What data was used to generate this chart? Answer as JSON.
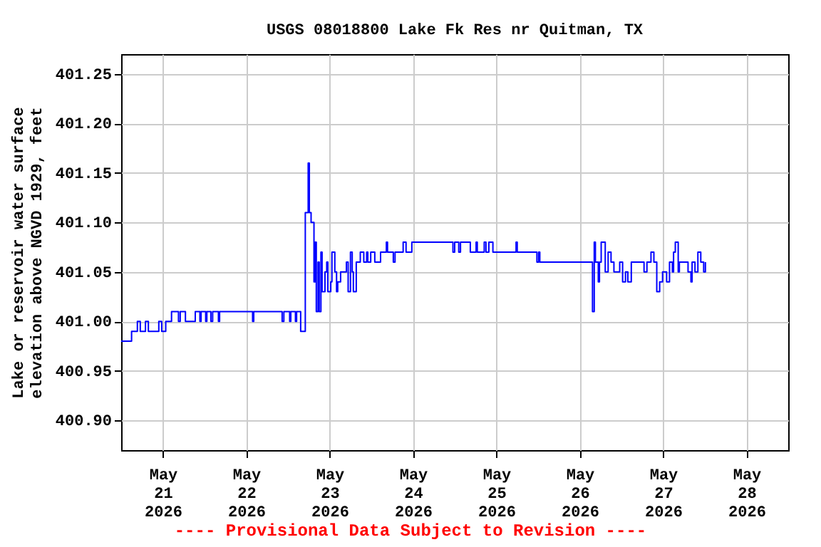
{
  "chart_data": {
    "type": "step",
    "title": "USGS 08018800 Lake Fk Res nr Quitman, TX",
    "ylabel": "Lake or reservoir water surface elevation above NGVD 1929, feet",
    "annotations": [
      "---- Provisional Data Subject to Revision ----"
    ],
    "xlim": [
      "2026-05-20T12:00",
      "2026-05-28T12:00"
    ],
    "xticks": [
      {
        "value": "2026-05-21",
        "label": "May 21 2026"
      },
      {
        "value": "2026-05-22",
        "label": "May 22 2026"
      },
      {
        "value": "2026-05-23",
        "label": "May 23 2026"
      },
      {
        "value": "2026-05-24",
        "label": "May 24 2026"
      },
      {
        "value": "2026-05-25",
        "label": "May 25 2026"
      },
      {
        "value": "2026-05-26",
        "label": "May 26 2026"
      },
      {
        "value": "2026-05-27",
        "label": "May 27 2026"
      },
      {
        "value": "2026-05-28",
        "label": "May 28 2026"
      }
    ],
    "ylim": [
      400.87,
      401.27
    ],
    "yticks": [
      {
        "value": 400.9,
        "label": "400.90"
      },
      {
        "value": 400.95,
        "label": "400.95"
      },
      {
        "value": 401.0,
        "label": "401.00"
      },
      {
        "value": 401.05,
        "label": "401.05"
      },
      {
        "value": 401.1,
        "label": "401.10"
      },
      {
        "value": 401.15,
        "label": "401.15"
      },
      {
        "value": 401.2,
        "label": "401.20"
      },
      {
        "value": 401.25,
        "label": "401.25"
      }
    ],
    "grid": true,
    "marker": "none",
    "line_style": "solid",
    "series": [
      {
        "color": "#0000ff",
        "x": [
          "2026-05-20T12:00",
          "2026-05-20T15:00",
          "2026-05-20T16:40",
          "2026-05-20T17:30",
          "2026-05-20T19:00",
          "2026-05-20T19:50",
          "2026-05-20T22:50",
          "2026-05-20T23:40",
          "2026-05-21T00:50",
          "2026-05-21T02:30",
          "2026-05-21T04:30",
          "2026-05-21T05:00",
          "2026-05-21T06:30",
          "2026-05-21T09:20",
          "2026-05-21T10:40",
          "2026-05-21T11:00",
          "2026-05-21T12:20",
          "2026-05-21T12:40",
          "2026-05-21T13:50",
          "2026-05-21T14:20",
          "2026-05-21T16:00",
          "2026-05-21T16:20",
          "2026-05-22T01:50",
          "2026-05-22T02:10",
          "2026-05-22T10:20",
          "2026-05-22T10:50",
          "2026-05-22T12:30",
          "2026-05-22T12:50",
          "2026-05-22T14:10",
          "2026-05-22T14:30",
          "2026-05-22T15:40",
          "2026-05-22T17:00",
          "2026-05-22T17:50",
          "2026-05-22T18:10",
          "2026-05-22T18:40",
          "2026-05-22T19:30",
          "2026-05-22T19:50",
          "2026-05-22T20:10",
          "2026-05-22T20:40",
          "2026-05-22T21:00",
          "2026-05-22T21:30",
          "2026-05-22T21:50",
          "2026-05-22T22:40",
          "2026-05-22T23:10",
          "2026-05-22T23:30",
          "2026-05-23T00:20",
          "2026-05-23T00:40",
          "2026-05-23T01:30",
          "2026-05-23T02:00",
          "2026-05-23T02:20",
          "2026-05-23T03:10",
          "2026-05-23T04:50",
          "2026-05-23T05:20",
          "2026-05-23T06:00",
          "2026-05-23T06:30",
          "2026-05-23T06:50",
          "2026-05-23T07:40",
          "2026-05-23T08:50",
          "2026-05-23T09:50",
          "2026-05-23T10:40",
          "2026-05-23T11:00",
          "2026-05-23T11:50",
          "2026-05-23T13:00",
          "2026-05-23T14:40",
          "2026-05-23T16:20",
          "2026-05-23T16:40",
          "2026-05-23T18:20",
          "2026-05-23T18:50",
          "2026-05-23T21:10",
          "2026-05-23T22:00",
          "2026-05-23T23:40",
          "2026-05-24T11:30",
          "2026-05-24T12:00",
          "2026-05-24T13:10",
          "2026-05-24T13:40",
          "2026-05-24T16:30",
          "2026-05-24T18:10",
          "2026-05-24T18:30",
          "2026-05-24T20:30",
          "2026-05-24T21:00",
          "2026-05-24T21:50",
          "2026-05-24T23:00",
          "2026-05-25T05:40",
          "2026-05-25T06:00",
          "2026-05-25T11:40",
          "2026-05-25T12:10",
          "2026-05-25T12:30",
          "2026-05-26T03:40",
          "2026-05-26T04:10",
          "2026-05-26T04:30",
          "2026-05-26T05:20",
          "2026-05-26T05:40",
          "2026-05-26T06:10",
          "2026-05-26T07:20",
          "2026-05-26T08:10",
          "2026-05-26T09:00",
          "2026-05-26T09:50",
          "2026-05-26T11:30",
          "2026-05-26T12:20",
          "2026-05-26T13:10",
          "2026-05-26T13:50",
          "2026-05-26T14:50",
          "2026-05-26T18:30",
          "2026-05-26T19:20",
          "2026-05-26T20:30",
          "2026-05-26T21:20",
          "2026-05-26T22:10",
          "2026-05-26T23:00",
          "2026-05-26T23:50",
          "2026-05-27T01:00",
          "2026-05-27T01:50",
          "2026-05-27T02:40",
          "2026-05-27T03:00",
          "2026-05-27T03:30",
          "2026-05-27T04:20",
          "2026-05-27T04:40",
          "2026-05-27T07:10",
          "2026-05-27T08:00",
          "2026-05-27T08:20",
          "2026-05-27T09:10",
          "2026-05-27T10:00",
          "2026-05-27T10:50",
          "2026-05-27T11:40",
          "2026-05-27T12:10"
        ],
        "values": [
          400.98,
          400.99,
          401.0,
          400.99,
          401.0,
          400.99,
          401.0,
          400.99,
          401.0,
          401.01,
          401.0,
          401.01,
          401.0,
          401.01,
          401.0,
          401.01,
          401.0,
          401.01,
          401.0,
          401.01,
          401.0,
          401.01,
          401.0,
          401.01,
          401.0,
          401.01,
          401.0,
          401.01,
          401.0,
          401.01,
          400.99,
          401.11,
          401.16,
          401.11,
          401.1,
          401.04,
          401.08,
          401.01,
          401.06,
          401.01,
          401.07,
          401.03,
          401.05,
          401.06,
          401.03,
          401.04,
          401.07,
          401.05,
          401.03,
          401.04,
          401.05,
          401.06,
          401.03,
          401.07,
          401.05,
          401.03,
          401.06,
          401.07,
          401.06,
          401.07,
          401.06,
          401.07,
          401.06,
          401.07,
          401.08,
          401.07,
          401.06,
          401.07,
          401.08,
          401.07,
          401.08,
          401.07,
          401.08,
          401.07,
          401.08,
          401.07,
          401.08,
          401.07,
          401.08,
          401.07,
          401.08,
          401.07,
          401.08,
          401.07,
          401.06,
          401.07,
          401.06,
          401.01,
          401.08,
          401.06,
          401.04,
          401.06,
          401.08,
          401.05,
          401.07,
          401.06,
          401.05,
          401.06,
          401.04,
          401.05,
          401.04,
          401.06,
          401.05,
          401.06,
          401.07,
          401.06,
          401.03,
          401.04,
          401.05,
          401.04,
          401.06,
          401.05,
          401.07,
          401.08,
          401.05,
          401.06,
          401.05,
          401.04,
          401.06,
          401.05,
          401.07,
          401.06,
          401.05,
          401.06
        ]
      }
    ]
  }
}
